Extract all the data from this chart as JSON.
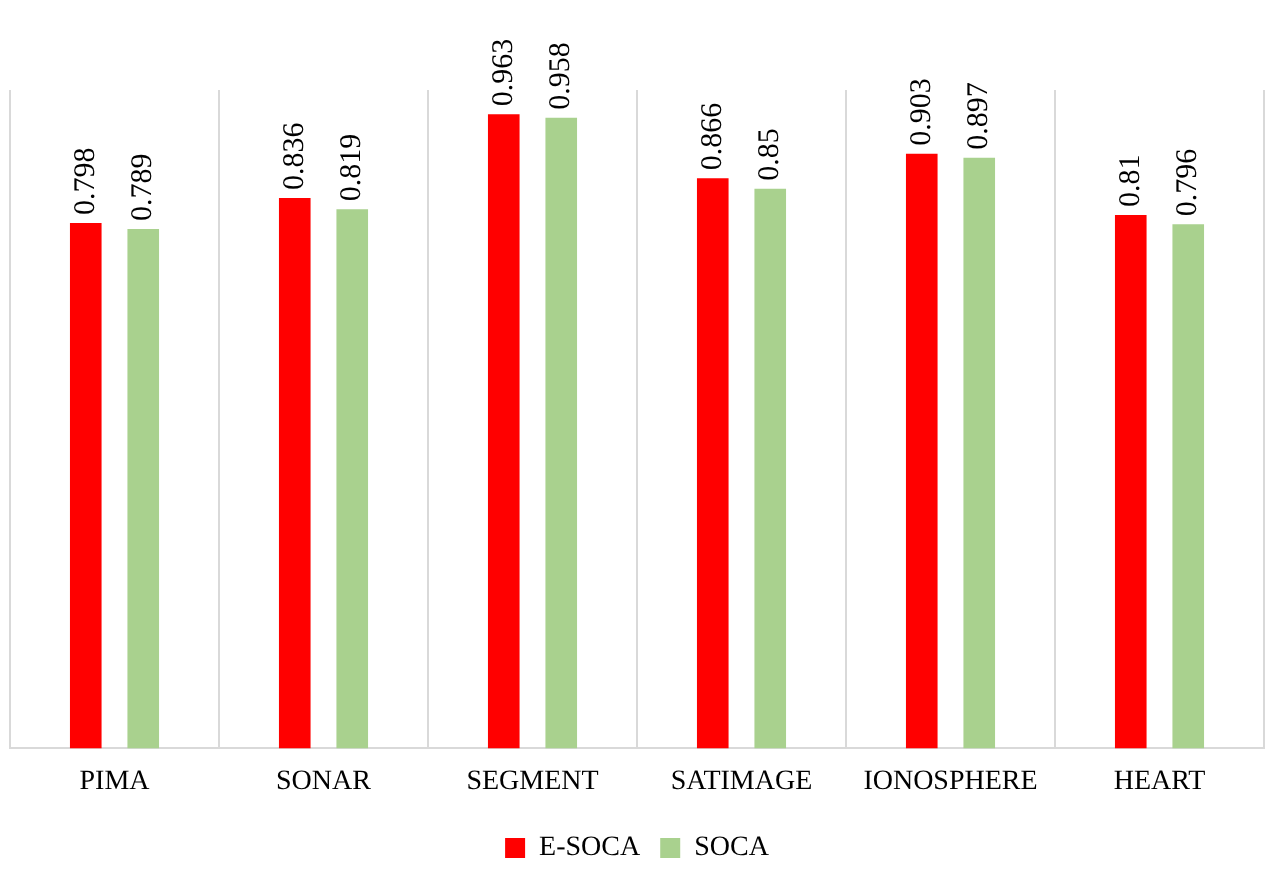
{
  "chart_data": {
    "type": "bar",
    "categories": [
      "PIMA",
      "SONAR",
      "SEGMENT",
      "SATIMAGE",
      "IONOSPHERE",
      "HEART"
    ],
    "series": [
      {
        "name": "E-SOCA",
        "color": "#ff0000",
        "values": [
          0.798,
          0.836,
          0.963,
          0.866,
          0.903,
          0.81
        ]
      },
      {
        "name": "SOCA",
        "color": "#a9d18e",
        "values": [
          0.789,
          0.819,
          0.958,
          0.85,
          0.897,
          0.796
        ]
      }
    ],
    "data_labels": true,
    "grid": "x",
    "legend": "bottom"
  }
}
